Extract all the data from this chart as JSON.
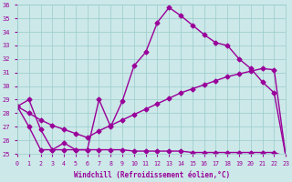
{
  "xlabel": "Windchill (Refroidissement éolien,°C)",
  "x_values": [
    0,
    1,
    2,
    3,
    4,
    5,
    6,
    7,
    8,
    9,
    10,
    11,
    12,
    13,
    14,
    15,
    16,
    17,
    18,
    19,
    20,
    21,
    22,
    23
  ],
  "line1": [
    28.5,
    29.0,
    26.8,
    25.3,
    25.8,
    25.3,
    25.3,
    29.0,
    27.0,
    28.9,
    31.5,
    32.5,
    34.7,
    35.8,
    35.2,
    34.5,
    33.8,
    33.2,
    33.0,
    32.0,
    31.3,
    30.3,
    29.5,
    24.8
  ],
  "line2": [
    28.5,
    28.0,
    27.5,
    27.1,
    26.8,
    26.5,
    26.2,
    26.7,
    27.1,
    27.5,
    27.9,
    28.3,
    28.7,
    29.1,
    29.5,
    29.8,
    30.1,
    30.4,
    30.7,
    30.9,
    31.1,
    31.3,
    31.2,
    24.8
  ],
  "line3": [
    28.5,
    27.0,
    25.3,
    25.3,
    25.3,
    25.3,
    25.3,
    25.3,
    25.3,
    25.3,
    25.2,
    25.2,
    25.2,
    25.2,
    25.2,
    25.1,
    25.1,
    25.1,
    25.1,
    25.1,
    25.1,
    25.1,
    25.1,
    24.8
  ],
  "ylim": [
    25,
    36
  ],
  "xlim": [
    0,
    23
  ],
  "yticks": [
    25,
    26,
    27,
    28,
    29,
    30,
    31,
    32,
    33,
    34,
    35,
    36
  ],
  "xticks": [
    0,
    1,
    2,
    3,
    4,
    5,
    6,
    7,
    8,
    9,
    10,
    11,
    12,
    13,
    14,
    15,
    16,
    17,
    18,
    19,
    20,
    21,
    22,
    23
  ],
  "line_color": "#990099",
  "bg_color": "#cce8e8",
  "grid_color": "#99cccc",
  "tick_label_color": "#990099",
  "axis_label_color": "#990099",
  "marker": "D",
  "marker_size": 2.5,
  "linewidth": 1.0
}
